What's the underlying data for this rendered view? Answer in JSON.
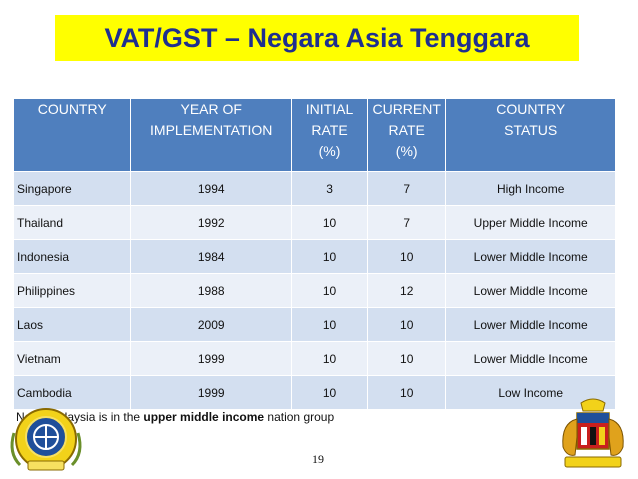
{
  "title": "VAT/GST – Negara Asia Tenggara",
  "table": {
    "headers": [
      [
        "COUNTRY"
      ],
      [
        "YEAR OF",
        "IMPLEMENTATION"
      ],
      [
        "INITIAL",
        "RATE",
        "(%)"
      ],
      [
        "CURRENT",
        "RATE",
        "(%)"
      ],
      [
        "COUNTRY",
        "STATUS"
      ]
    ],
    "rows": [
      {
        "country": "Singapore",
        "year": "1994",
        "initial": "3",
        "current": "7",
        "status": "High Income"
      },
      {
        "country": "Thailand",
        "year": "1992",
        "initial": "10",
        "current": "7",
        "status": "Upper Middle Income"
      },
      {
        "country": "Indonesia",
        "year": "1984",
        "initial": "10",
        "current": "10",
        "status": "Lower Middle Income"
      },
      {
        "country": "Philippines",
        "year": "1988",
        "initial": "10",
        "current": "12",
        "status": "Lower Middle Income"
      },
      {
        "country": "Laos",
        "year": "2009",
        "initial": "10",
        "current": "10",
        "status": "Lower Middle Income"
      },
      {
        "country": "Vietnam",
        "year": "1999",
        "initial": "10",
        "current": "10",
        "status": "Lower Middle Income"
      },
      {
        "country": "Cambodia",
        "year": "1999",
        "initial": "10",
        "current": "10",
        "status": "Low Income"
      }
    ]
  },
  "note": {
    "prefix": "Note: Malaysia is in the ",
    "emphasis": "upper middle income",
    "suffix": " nation group"
  },
  "page_number": "19",
  "colors": {
    "title_bg": "#ffff00",
    "title_text": "#1f2f8f",
    "header_bg": "#4f7fbe",
    "row_odd": "#d3dff0",
    "row_even": "#ebf0f8"
  },
  "icons": {
    "left": "customs-emblem-icon",
    "right": "malaysia-coat-of-arms-icon"
  }
}
